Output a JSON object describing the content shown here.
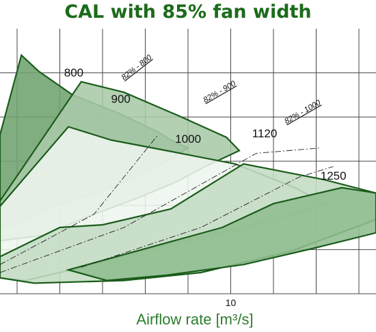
{
  "chart_data": {
    "type": "area",
    "title": "CAL with 85% fan width",
    "xlabel": "Airflow rate [m³/s]",
    "ylabel": "",
    "x_ticks": [
      {
        "value": 10,
        "label": "10"
      }
    ],
    "xlim": [
      4.6,
      13.4
    ],
    "ylim": [
      0,
      100
    ],
    "grid": true,
    "legend": "none",
    "series": [
      {
        "name": "800",
        "points": [
          [
            4.6,
            60
          ],
          [
            5.1,
            90
          ],
          [
            5.5,
            84
          ],
          [
            6.3,
            75
          ],
          [
            7.4,
            68
          ],
          [
            8.3,
            61
          ],
          [
            8.6,
            58
          ],
          [
            9.0,
            55
          ],
          [
            8.5,
            50
          ],
          [
            7.8,
            44
          ],
          [
            6.9,
            38
          ],
          [
            6.0,
            34
          ],
          [
            4.6,
            24
          ]
        ]
      },
      {
        "name": "900",
        "points": [
          [
            4.6,
            35
          ],
          [
            6.5,
            80
          ],
          [
            7.5,
            76
          ],
          [
            8.8,
            67
          ],
          [
            9.9,
            59
          ],
          [
            10.2,
            54
          ],
          [
            9.4,
            48
          ],
          [
            8.7,
            42
          ],
          [
            7.8,
            36
          ],
          [
            6.8,
            30
          ],
          [
            5.6,
            22
          ],
          [
            4.6,
            20
          ]
        ]
      },
      {
        "name": "1000",
        "points": [
          [
            4.6,
            33
          ],
          [
            6.2,
            63
          ],
          [
            7.2,
            58
          ],
          [
            8.5,
            54
          ],
          [
            10.1,
            49
          ],
          [
            11.5,
            40
          ],
          [
            12.2,
            34
          ],
          [
            11.0,
            28
          ],
          [
            9.8,
            23
          ],
          [
            8.2,
            17
          ],
          [
            6.8,
            11
          ],
          [
            5.2,
            5
          ],
          [
            4.6,
            6
          ]
        ]
      },
      {
        "name": "1120",
        "points": [
          [
            4.6,
            14
          ],
          [
            6.0,
            25
          ],
          [
            7.0,
            26
          ],
          [
            8.6,
            32
          ],
          [
            10.3,
            49
          ],
          [
            12.2,
            43
          ],
          [
            13.4,
            38
          ],
          [
            13.4,
            28
          ],
          [
            11.4,
            16
          ],
          [
            9.3,
            8
          ],
          [
            7.5,
            5
          ],
          [
            5.4,
            4
          ],
          [
            4.6,
            6
          ]
        ]
      },
      {
        "name": "1250",
        "points": [
          [
            6.2,
            9
          ],
          [
            9.8,
            25
          ],
          [
            11.0,
            34
          ],
          [
            12.6,
            40
          ],
          [
            13.4,
            38
          ],
          [
            13.4,
            23
          ],
          [
            11.9,
            17
          ],
          [
            10.3,
            11
          ],
          [
            8.5,
            7
          ],
          [
            7.1,
            5
          ],
          [
            6.2,
            9
          ]
        ]
      }
    ],
    "efficiency_lines": [
      {
        "label": "82% - 800",
        "points": [
          [
            4.6,
            11
          ],
          [
            6.8,
            30
          ],
          [
            8.3,
            60
          ]
        ]
      },
      {
        "label": "82% - 900",
        "points": [
          [
            4.6,
            8
          ],
          [
            7.5,
            25
          ],
          [
            10.6,
            53
          ],
          [
            12.1,
            55
          ]
        ]
      },
      {
        "label": "82% - 1000",
        "points": [
          [
            6.5,
            10
          ],
          [
            9.3,
            25
          ],
          [
            11.6,
            44
          ],
          [
            12.4,
            48
          ]
        ]
      }
    ],
    "annotations": [
      "800",
      "900",
      "1000",
      "1120",
      "1250",
      "82% - 800",
      "82% - 900",
      "82% - 1000"
    ],
    "colors": {
      "title": "#1b6b1b",
      "axis_label": "#2e7d2e",
      "outline": "#1a5c1a",
      "fill_800": "#6fa36f",
      "fill_900": "#a8caa8",
      "fill_1000": "#eef5ee",
      "fill_1120": "#c3dcc3",
      "fill_1250": "#8fbd8f",
      "grid": "#444444"
    }
  }
}
